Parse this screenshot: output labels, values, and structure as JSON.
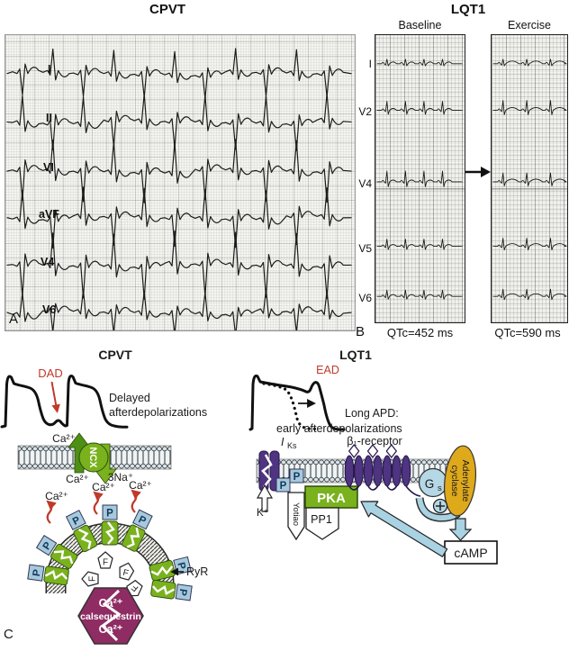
{
  "colors": {
    "ink": "#1a1a1a",
    "red": "#c0392b",
    "green": "#79b21d",
    "green_dark": "#4e8f15",
    "pblue": "#a6cadd",
    "pblue_text": "#16395c",
    "purple": "#4f3482",
    "purple_dark": "#241447",
    "gold": "#dfa91c",
    "gs_blue": "#b5d7e6",
    "arrow_blue": "#a9d2e3",
    "magenta": "#8e2c63"
  },
  "figure": {
    "top": {
      "cpvt_title": "CPVT",
      "lqt1_title": "LQT1"
    },
    "panel_a": {
      "label": "A",
      "leads": [
        "I",
        "II",
        "VI",
        "aVF",
        "V4",
        "V6"
      ]
    },
    "panel_b": {
      "label": "B",
      "baseline_header": "Baseline",
      "exercise_header": "Exercise",
      "leads": [
        "I",
        "V2",
        "V4",
        "V5",
        "V6"
      ],
      "qtc_baseline": "QTc=452 ms",
      "qtc_exercise": "QTc=590 ms"
    },
    "panel_c": {
      "label": "C",
      "cpvt": {
        "title": "CPVT",
        "dad": "DAD",
        "desc_line1": "Delayed",
        "desc_line2": "afterdepolarizations",
        "ca": "Ca²⁺",
        "na": "3Na⁺",
        "ncx": "NCX",
        "p": "P",
        "f": "F",
        "ryr": "RyR",
        "calsequestrin": "calsequestrin"
      },
      "lqt1": {
        "title": "LQT1",
        "ead": "EAD",
        "apd_line1": "Long APD:",
        "apd_line2": "early afterdepolarizations",
        "iks_main": "I",
        "iks_sub": "Ks",
        "beta_receptor": "β₁-receptor",
        "k": "K⁺",
        "pka": "PKA",
        "pp1": "PP1",
        "yotiao": "Yotiao",
        "gs_main": "G",
        "gs_sub": "s",
        "ac_line1": "Adenylate",
        "ac_line2": "cyclase",
        "camp": "cAMP"
      }
    }
  }
}
